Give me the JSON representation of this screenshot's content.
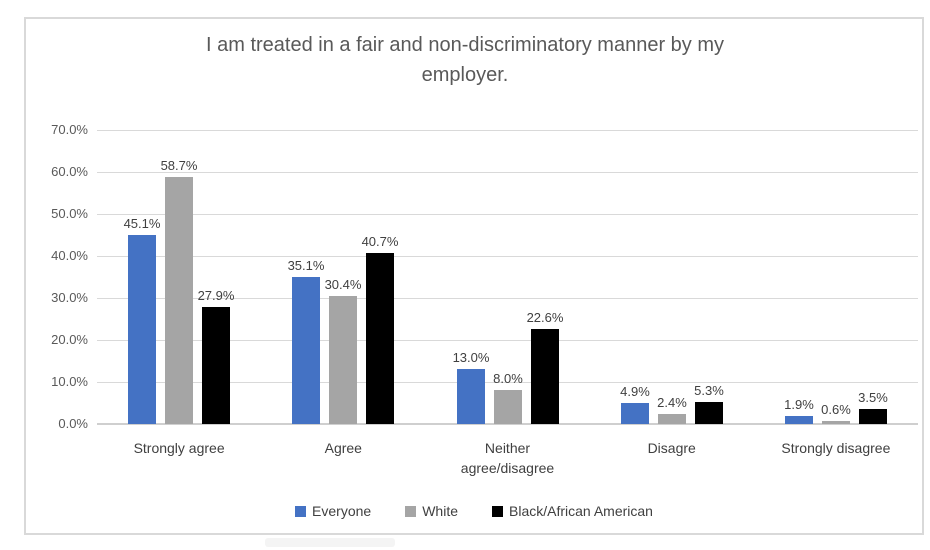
{
  "chart_data": {
    "type": "bar",
    "title": "I am treated in a fair and non-discriminatory manner by my employer.",
    "title_lines": [
      "I am treated in a fair and non-discriminatory manner by my",
      "employer."
    ],
    "categories": [
      "Strongly agree",
      "Agree",
      "Neither agree/disagree",
      "Disagre",
      "Strongly disagree"
    ],
    "category_lines": [
      [
        "Strongly agree"
      ],
      [
        "Agree"
      ],
      [
        "Neither",
        "agree/disagree"
      ],
      [
        "Disagre"
      ],
      [
        "Strongly disagree"
      ]
    ],
    "series": [
      {
        "name": "Everyone",
        "color": "#4472C4",
        "values": [
          45.1,
          35.1,
          13.0,
          4.9,
          1.9
        ]
      },
      {
        "name": "White",
        "color": "#A5A5A5",
        "values": [
          58.7,
          30.4,
          8.0,
          2.4,
          0.6
        ]
      },
      {
        "name": "Black/African American",
        "color": "#000000",
        "values": [
          27.9,
          40.7,
          22.6,
          5.3,
          3.5
        ]
      }
    ],
    "data_label_format": "one_decimal_percent",
    "xlabel": "",
    "ylabel": "",
    "ylim": [
      0,
      70
    ],
    "ytick_step": 10,
    "ytick_labels": [
      "0.0%",
      "10.0%",
      "20.0%",
      "30.0%",
      "40.0%",
      "50.0%",
      "60.0%",
      "70.0%"
    ],
    "grid": "horizontal",
    "legend_position": "bottom",
    "colors": {
      "gridline": "#D9D9D9",
      "axis_line": "#CFCFCF",
      "frame_border": "#D9D9D9",
      "title_text": "#595959",
      "axis_tick_text": "#595959",
      "label_text": "#404040"
    }
  }
}
